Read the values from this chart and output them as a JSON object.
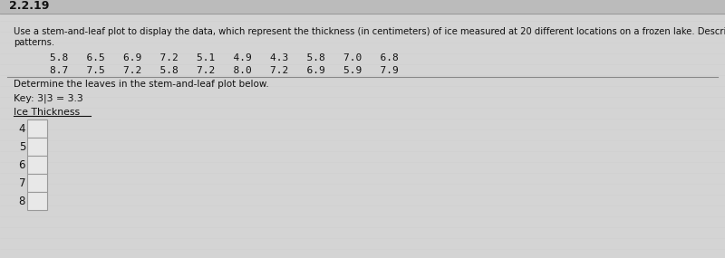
{
  "title_text": "2.2.19",
  "instruction": "Use a stem-and-leaf plot to display the data, which represent the thickness (in centimeters) of ice measured at 20 different locations on a frozen lake. Describe any\npatterns.",
  "data_row1": "    5.8   6.5   6.9   7.2   5.1   4.9   4.3   5.8   7.0   6.8",
  "data_row2": "    8.7   7.5   7.2   5.8   7.2   8.0   7.2   6.9   5.9   7.9",
  "sub_instruction": "Determine the leaves in the stem-and-leaf plot below.",
  "key_text": "Key: 3|3 = 3.3",
  "label_text": "Ice Thickness",
  "stems": [
    "4",
    "5",
    "6",
    "7",
    "8"
  ],
  "bg_top": "#c8c8c8",
  "bg_main": "#d4d4d4",
  "box_color": "#e8e8e8",
  "text_color": "#111111",
  "line_color": "#888888",
  "border_color": "#aaaaaa"
}
